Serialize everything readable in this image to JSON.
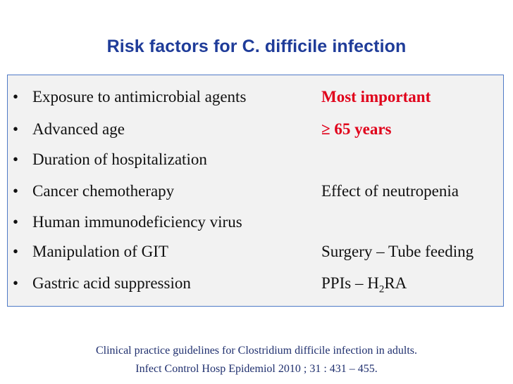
{
  "title": "Risk factors for C. difficile infection",
  "bullet_char": "•",
  "rows": [
    {
      "factor": "Exposure to antimicrobial agents",
      "note": "Most important"
    },
    {
      "factor": "Advanced age",
      "note": "≥ 65 years"
    },
    {
      "factor": "Duration of hospitalization",
      "note": ""
    },
    {
      "factor": "Cancer chemotherapy",
      "note": "Effect of neutropenia"
    },
    {
      "factor": "Human immunodeficiency virus",
      "note": ""
    },
    {
      "factor": "Manipulation of GIT",
      "note": "Surgery – Tube feeding"
    },
    {
      "factor": "Gastric acid suppression",
      "note_prefix": "PPIs – H",
      "note_sub": "2",
      "note_suffix": "RA"
    }
  ],
  "citation": {
    "line1": "Clinical practice guidelines for Clostridium difficile infection in adults.",
    "line2": "Infect Control Hosp Epidemiol 2010 ; 31 : 431 – 455."
  },
  "colors": {
    "title": "#1f3c99",
    "highlight": "#e0001a",
    "box_border": "#4f7ac7",
    "box_fill": "#f2f2f2",
    "citation": "#1f2f6e"
  }
}
